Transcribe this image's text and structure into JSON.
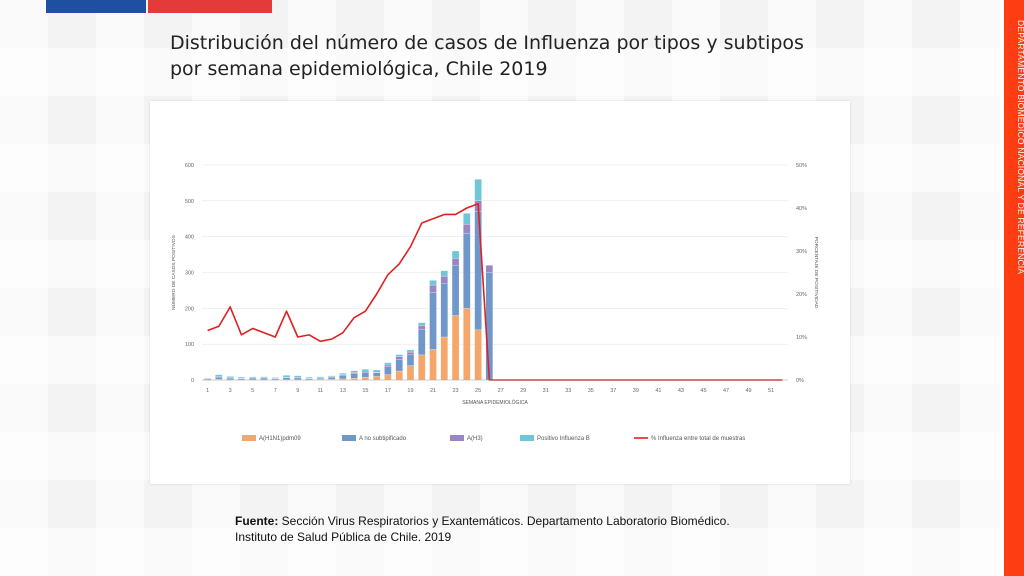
{
  "slide": {
    "title_line1": "Distribución del número de casos de Influenza por tipos y subtipos",
    "title_line2": "por semana epidemiológica, Chile 2019",
    "sidebar_text": "DEPARTAMENTO BIOMÉDICO NACIONAL Y DE REFERENCIA",
    "source_label": "Fuente:",
    "source_line1": " Sección Virus Respiratorios y Exantemáticos. Departamento Laboratorio Biomédico.",
    "source_line2": "Instituto de Salud Pública de Chile. 2019"
  },
  "colors": {
    "flag_blue": "#1e4fa0",
    "flag_red": "#e53a3a",
    "sidebar_red": "#ff3d13",
    "h1n1": "#f5a66b",
    "a_nosub": "#6f97c9",
    "h3": "#9b86c4",
    "flu_b": "#6fc6d8",
    "line": "#e02020"
  },
  "chart_data": {
    "type": "bar",
    "title": "",
    "xlabel": "SEMANA EPIDEMIOLÓGICA",
    "ylabel": "NÚMERO DE CASOS POSITIVOS",
    "y2label": "PORCENTAJE DE POSITIVIDAD",
    "ylim": [
      0,
      600
    ],
    "y_ticks": [
      "0",
      "100",
      "200",
      "300",
      "400",
      "500",
      "600"
    ],
    "y2lim": [
      0,
      50
    ],
    "y2_ticks": [
      "0%",
      "10%",
      "20%",
      "30%",
      "40%",
      "50%"
    ],
    "x_tick_labels": [
      "1",
      "3",
      "5",
      "7",
      "9",
      "11",
      "13",
      "15",
      "17",
      "19",
      "21",
      "23",
      "25",
      "27",
      "29",
      "31",
      "33",
      "35",
      "37",
      "39",
      "41",
      "43",
      "45",
      "47",
      "49",
      "51"
    ],
    "weeks": [
      1,
      2,
      3,
      4,
      5,
      6,
      7,
      8,
      9,
      10,
      11,
      12,
      13,
      14,
      15,
      16,
      17,
      18,
      19,
      20,
      21,
      22,
      23,
      24,
      25,
      26,
      27,
      28,
      29,
      30,
      31,
      32,
      33,
      34,
      35,
      36,
      37,
      38,
      39,
      40,
      41,
      42,
      43,
      44,
      45,
      46,
      47,
      48,
      49,
      50,
      51,
      52
    ],
    "series": [
      {
        "name": "A(H1N1)pdm09",
        "values": [
          1,
          2,
          1,
          1,
          1,
          1,
          1,
          1,
          1,
          1,
          2,
          2,
          3,
          5,
          8,
          10,
          15,
          25,
          40,
          70,
          85,
          120,
          180,
          200,
          140,
          0,
          0,
          0,
          0,
          0,
          0,
          0,
          0,
          0,
          0,
          0,
          0,
          0,
          0,
          0,
          0,
          0,
          0,
          0,
          0,
          0,
          0,
          0,
          0,
          0,
          0,
          0
        ]
      },
      {
        "name": "A no subtipificado",
        "values": [
          2,
          6,
          4,
          3,
          4,
          4,
          3,
          6,
          5,
          3,
          3,
          5,
          9,
          13,
          14,
          10,
          22,
          32,
          30,
          70,
          160,
          150,
          140,
          210,
          330,
          300,
          0,
          0,
          0,
          0,
          0,
          0,
          0,
          0,
          0,
          0,
          0,
          0,
          0,
          0,
          0,
          0,
          0,
          0,
          0,
          0,
          0,
          0,
          0,
          0,
          0,
          0
        ]
      },
      {
        "name": "A(H3)",
        "values": [
          0,
          1,
          1,
          1,
          1,
          1,
          1,
          1,
          1,
          1,
          1,
          2,
          3,
          3,
          3,
          2,
          5,
          8,
          8,
          12,
          20,
          20,
          20,
          25,
          30,
          20,
          0,
          0,
          0,
          0,
          0,
          0,
          0,
          0,
          0,
          0,
          0,
          0,
          0,
          0,
          0,
          0,
          0,
          0,
          0,
          0,
          0,
          0,
          0,
          0,
          0,
          0
        ]
      },
      {
        "name": "Positivo Influenza  B",
        "values": [
          2,
          6,
          4,
          3,
          3,
          3,
          2,
          5,
          5,
          3,
          3,
          3,
          4,
          5,
          5,
          6,
          6,
          6,
          6,
          8,
          13,
          15,
          20,
          30,
          60,
          0,
          0,
          0,
          0,
          0,
          0,
          0,
          0,
          0,
          0,
          0,
          0,
          0,
          0,
          0,
          0,
          0,
          0,
          0,
          0,
          0,
          0,
          0,
          0,
          0,
          0,
          0
        ]
      },
      {
        "name": "% Influenza entre total de muestras",
        "axis": "right",
        "values": [
          11.5,
          12.5,
          17,
          10.5,
          12,
          11,
          10,
          16,
          10,
          10.5,
          9,
          9.5,
          11,
          14.5,
          16,
          20,
          24.5,
          27,
          31,
          36.5,
          37.5,
          38.5,
          38.5,
          40,
          41,
          0,
          0,
          0,
          0,
          0,
          0,
          0,
          0,
          0,
          0,
          0,
          0,
          0,
          0,
          0,
          0,
          0,
          0,
          0,
          0,
          0,
          0,
          0,
          0,
          0,
          0,
          0
        ]
      }
    ],
    "legend": [
      "A(H1N1)pdm09",
      "A no subtipificado",
      "A(H3)",
      "Positivo Influenza  B",
      "% Influenza entre total de muestras"
    ],
    "legend_position": "bottom"
  }
}
